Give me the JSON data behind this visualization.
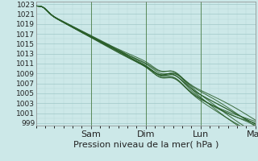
{
  "title": "Pression niveau de la mer( hPa )",
  "background_color": "#cce8e8",
  "plot_bg_color": "#cce8e8",
  "grid_minor_color": "#b8d8d8",
  "grid_major_color": "#a0c8c8",
  "line_color": "#2a5e2a",
  "day_line_color": "#5a8a5a",
  "ylim": [
    998.5,
    1023.5
  ],
  "yticks": [
    999,
    1001,
    1003,
    1005,
    1007,
    1009,
    1011,
    1013,
    1015,
    1017,
    1019,
    1021,
    1023
  ],
  "xtick_positions": [
    0.25,
    0.5,
    0.75,
    1.0
  ],
  "xtick_labels": [
    "Sam",
    "Dim",
    "Lun",
    "Mar"
  ],
  "xlabel_fontsize": 8,
  "ylabel_fontsize": 6.5,
  "num_points": 400
}
